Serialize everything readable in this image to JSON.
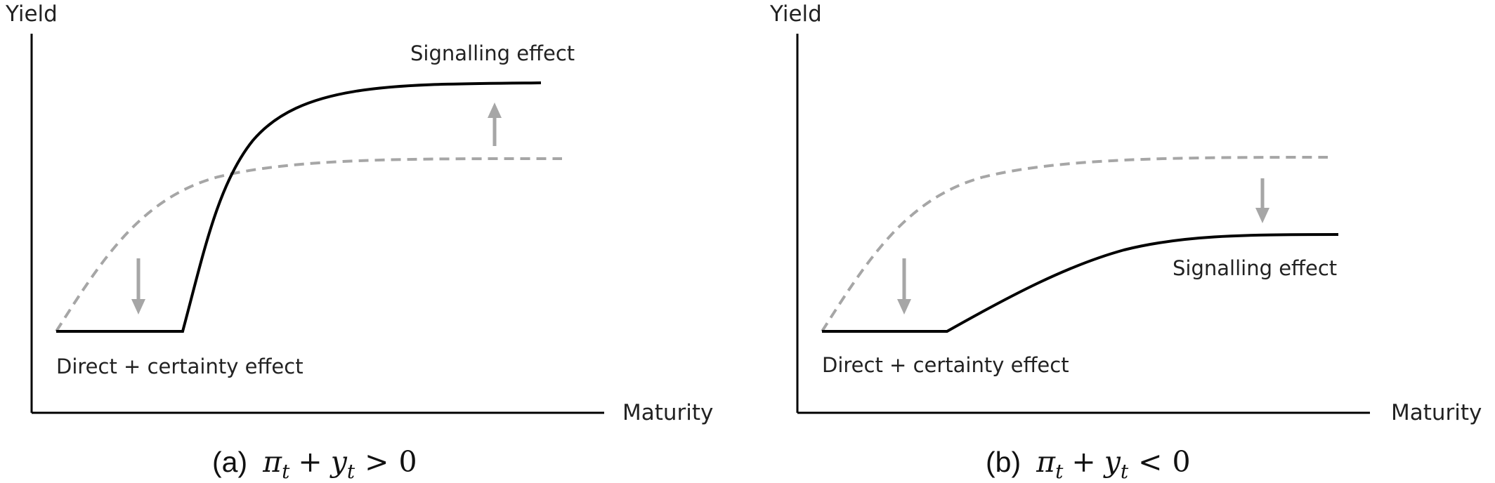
{
  "panels": [
    {
      "id": "a",
      "axis_labels": {
        "y": "Yield",
        "x": "Maturity"
      },
      "annotations": {
        "signalling": "Signalling effect",
        "direct": "Direct + certainty effect"
      },
      "caption": {
        "label": "(a)",
        "pi": "π",
        "t1": "t",
        "plus": "+",
        "y": "y",
        "t2": "t",
        "op": ">",
        "rhs": "0"
      },
      "curves": {
        "before": {
          "style": "dashed",
          "color": "#a6a6a6"
        },
        "after": {
          "style": "solid",
          "color": "#000000"
        }
      },
      "arrows": {
        "short_end": "down",
        "long_end": "up"
      }
    },
    {
      "id": "b",
      "axis_labels": {
        "y": "Yield",
        "x": "Maturity"
      },
      "annotations": {
        "signalling": "Signalling effect",
        "direct": "Direct + certainty effect"
      },
      "caption": {
        "label": "(b)",
        "pi": "π",
        "t1": "t",
        "plus": "+",
        "y": "y",
        "t2": "t",
        "op": "<",
        "rhs": "0"
      },
      "curves": {
        "before": {
          "style": "dashed",
          "color": "#a6a6a6"
        },
        "after": {
          "style": "solid",
          "color": "#000000"
        }
      },
      "arrows": {
        "short_end": "down",
        "long_end": "down"
      }
    }
  ]
}
